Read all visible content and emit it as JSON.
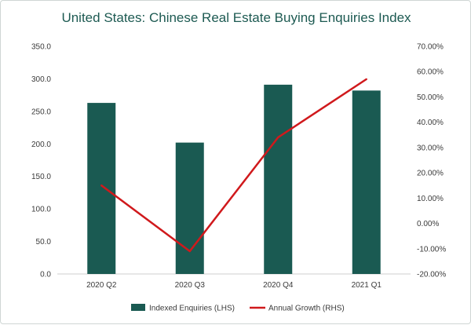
{
  "chart_data": {
    "type": "bar",
    "title": "United States: Chinese Real Estate Buying Enquiries Index",
    "categories": [
      "2020 Q2",
      "2020 Q3",
      "2020 Q4",
      "2021 Q1"
    ],
    "series": [
      {
        "name": "Indexed Enquiries (LHS)",
        "type": "bar",
        "axis": "left",
        "color": "#1a5a52",
        "values": [
          263,
          202,
          291,
          282
        ]
      },
      {
        "name": "Annual Growth (RHS)",
        "type": "line",
        "axis": "right",
        "color": "#d0191c",
        "values": [
          15.0,
          -11.0,
          34.0,
          57.0
        ]
      }
    ],
    "left_axis": {
      "ylim": [
        0,
        350
      ],
      "ticks": [
        "0.0",
        "50.0",
        "100.0",
        "150.0",
        "200.0",
        "250.0",
        "300.0",
        "350.0"
      ],
      "tick_values": [
        0,
        50,
        100,
        150,
        200,
        250,
        300,
        350
      ]
    },
    "right_axis": {
      "ylim": [
        -20,
        70
      ],
      "ticks": [
        "-20.00%",
        "-10.00%",
        "0.00%",
        "10.00%",
        "20.00%",
        "30.00%",
        "40.00%",
        "50.00%",
        "60.00%",
        "70.00%"
      ],
      "tick_values": [
        -20,
        -10,
        0,
        10,
        20,
        30,
        40,
        50,
        60,
        70
      ]
    },
    "grid": false,
    "legend_position": "bottom"
  }
}
